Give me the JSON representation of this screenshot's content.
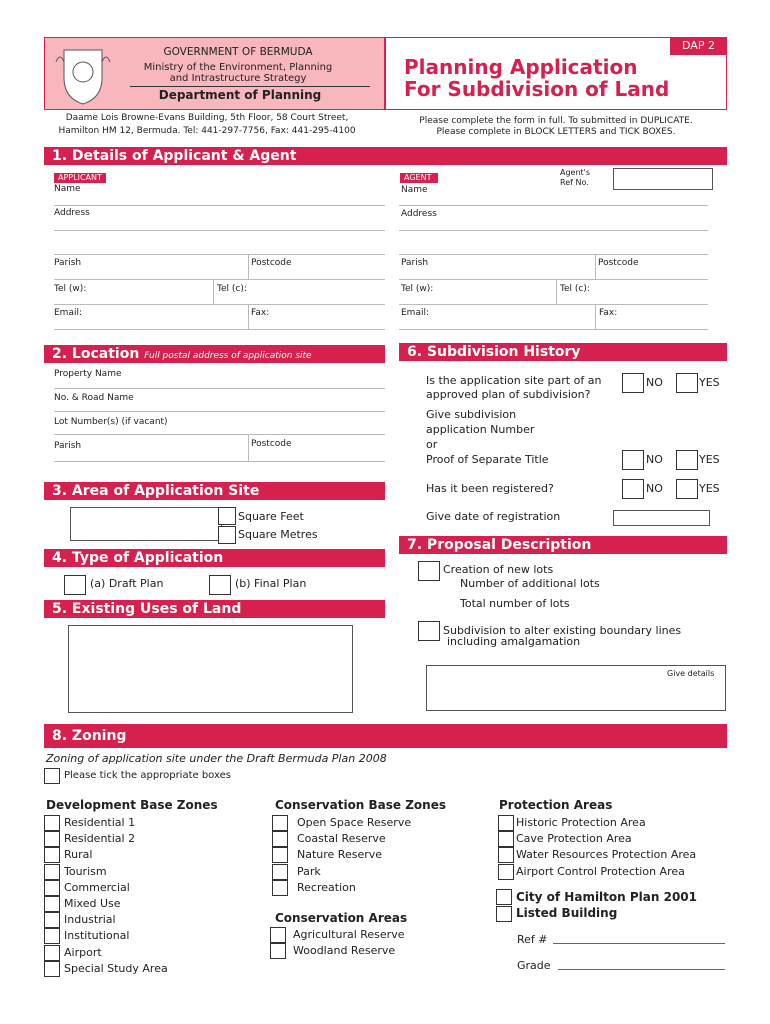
{
  "header": {
    "code": "DAP 2",
    "government": "GOVERNMENT OF BERMUDA",
    "ministry_line1": "Ministry of the Environment, Planning",
    "ministry_line2": "and Intrastructure Strategy",
    "department": "Department of Planning",
    "title_line1": "Planning Application",
    "title_line2": "For Subdivision of Land",
    "address_line1": "Daame Lois Browne-Evans Building, 5th Floor, 58 Court Street,",
    "address_line2": "Hamilton HM 12,  Bermuda. Tel: 441-297-7756, Fax: 441-295-4100",
    "instructions_line1": "Please complete the form in full.  To submitted in DUPLICATE.",
    "instructions_line2": "Please complete in BLOCK LETTERS and TICK BOXES."
  },
  "section1": {
    "title": "1. Details of Applicant & Agent",
    "applicant": {
      "tag": "APPLICANT",
      "name": "Name",
      "address": "Address",
      "parish": "Parish",
      "postcode": "Postcode",
      "tel_w": "Tel (w):",
      "tel_c": "Tel (c):",
      "email": "Email:",
      "fax": "Fax:"
    },
    "agent": {
      "tag": "AGENT",
      "ref_line1": "Agent's",
      "ref_line2": "Ref No.",
      "name": "Name",
      "address": "Address",
      "parish": "Parish",
      "postcode": "Postcode",
      "tel_w": "Tel (w):",
      "tel_c": "Tel (c):",
      "email": "Email:",
      "fax": "Fax:"
    }
  },
  "section2": {
    "title": "2. Location",
    "subtitle": "Full postal address of application site",
    "property_name": "Property Name",
    "road_name": "No. & Road Name",
    "lot_numbers": "Lot Number(s) (if vacant)",
    "parish": "Parish",
    "postcode": "Postcode"
  },
  "section3": {
    "title": "3. Area of Application Site",
    "square_feet": "Square Feet",
    "square_metres": "Square Metres"
  },
  "section4": {
    "title": "4. Type of Application",
    "draft_plan": "(a) Draft Plan",
    "final_plan": "(b) Final Plan"
  },
  "section5": {
    "title": "5. Existing Uses of Land"
  },
  "section6": {
    "title": "6. Subdivision History",
    "q1_line1": "Is the application site part of an",
    "q1_line2": "approved plan of subdivision?",
    "q2_line1": "Give subdivision",
    "q2_line2": "application Number",
    "q2_line3": "or",
    "q2_line4": "Proof of Separate Title",
    "q3": "Has it been registered?",
    "q4": "Give date of registration",
    "no": "NO",
    "yes": "YES"
  },
  "section7": {
    "title": "7. Proposal Description",
    "creation": "Creation of new lots",
    "additional": "Number of additional lots",
    "total": "Total number of lots",
    "alter_line1": "Subdivision to alter existing boundary lines",
    "alter_line2": "including amalgamation",
    "details": "Give details"
  },
  "section8": {
    "title": "8. Zoning",
    "subtitle": "Zoning of application site under the Draft Bermuda Plan 2008",
    "tick_note": "Please tick the appropriate boxes",
    "development": {
      "heading": "Development Base Zones",
      "items": [
        "Residential 1",
        "Residential 2",
        "Rural",
        "Tourism",
        "Commercial",
        "Mixed Use",
        "Industrial",
        "Institutional",
        "Airport",
        "Special Study Area"
      ]
    },
    "conservation_base": {
      "heading": "Conservation Base Zones",
      "items": [
        "Open Space Reserve",
        "Coastal Reserve",
        "Nature Reserve",
        "Park",
        "Recreation"
      ]
    },
    "conservation_areas": {
      "heading": "Conservation Areas",
      "items": [
        "Agricultural Reserve",
        "Woodland Reserve"
      ]
    },
    "protection": {
      "heading": "Protection Areas",
      "items": [
        "Historic Protection Area",
        "Cave Protection Area",
        "Water Resources Protection Area",
        "Airport Control Protection Area"
      ]
    },
    "city_plan": "City of Hamilton Plan 2001",
    "listed_building": "Listed Building",
    "ref": "Ref #",
    "grade": "Grade"
  }
}
